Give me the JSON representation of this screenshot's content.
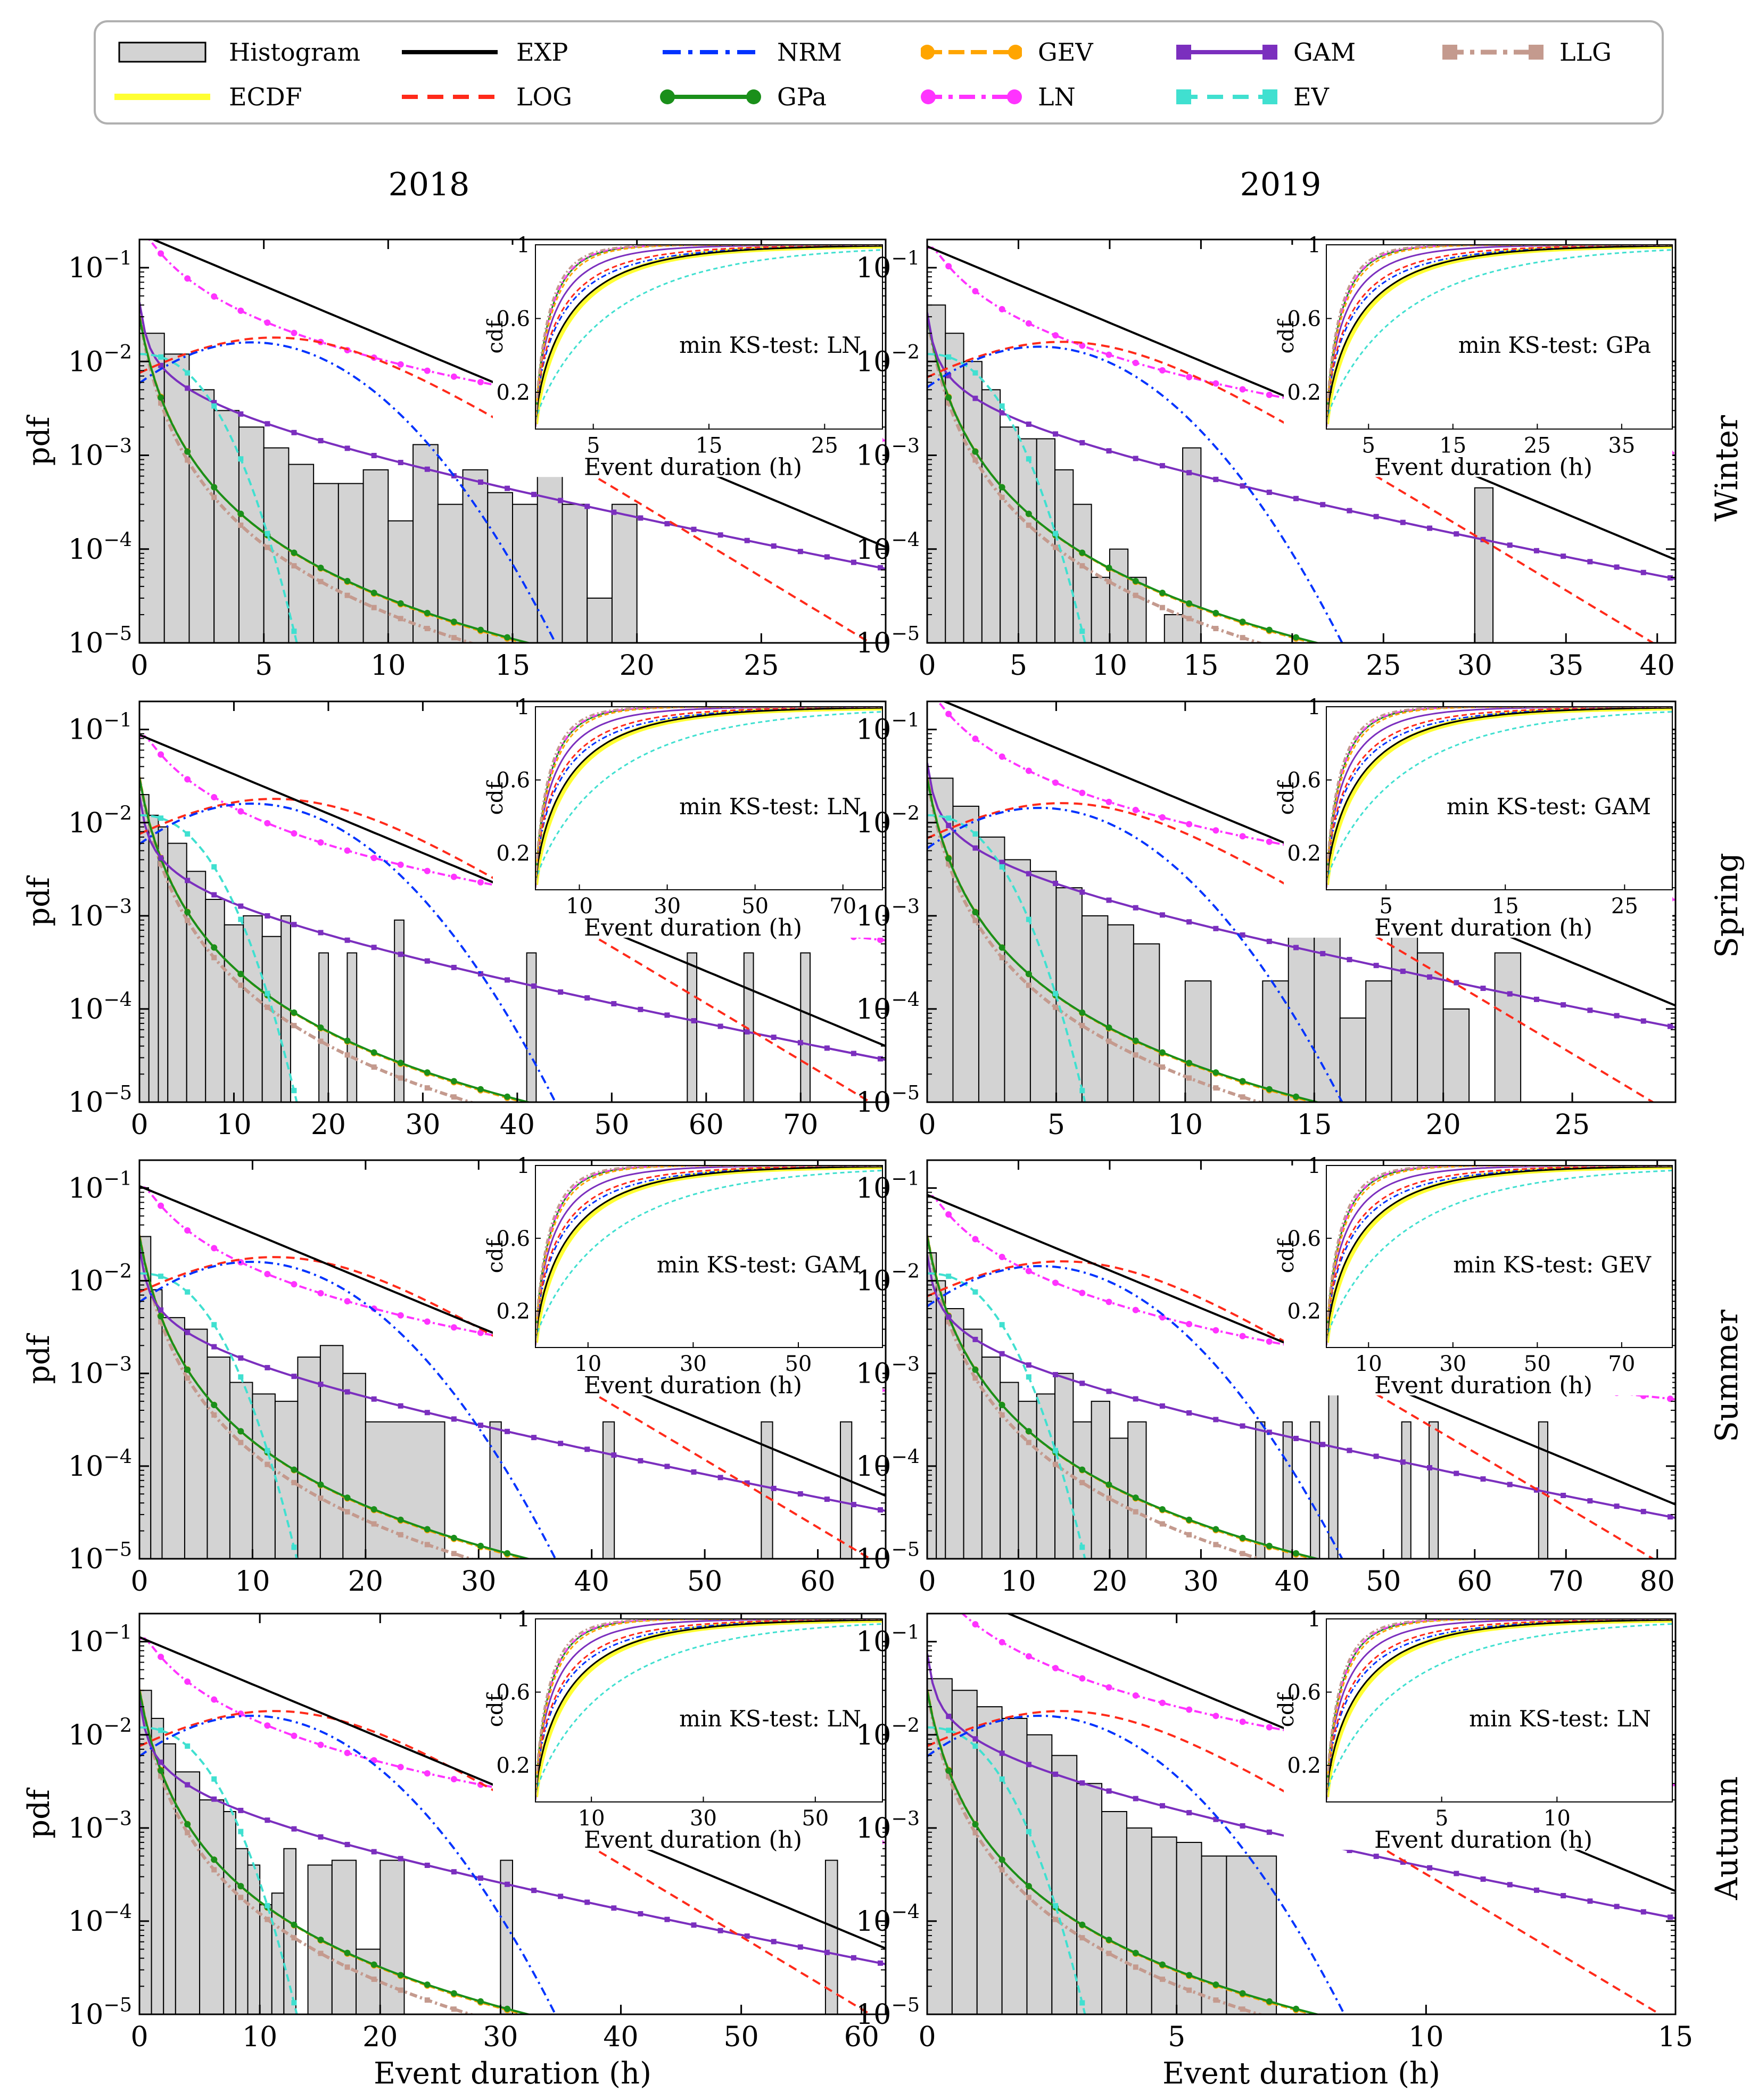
{
  "legend": {
    "items": [
      {
        "key": "hist",
        "label": "Histogram",
        "color": "#d3d3d3",
        "style": "box"
      },
      {
        "key": "EXP",
        "label": "EXP",
        "color": "#000000",
        "style": "solid"
      },
      {
        "key": "NRM",
        "label": "NRM",
        "color": "#0033ff",
        "style": "dashdot"
      },
      {
        "key": "GEV",
        "label": "GEV",
        "color": "#ffa500",
        "style": "dash-dot-marker"
      },
      {
        "key": "GAM",
        "label": "GAM",
        "color": "#7b2fbe",
        "style": "solid-square"
      },
      {
        "key": "LLG",
        "label": "LLG",
        "color": "#c49a8e",
        "style": "dashdot-square"
      },
      {
        "key": "ECDF",
        "label": "ECDF",
        "color": "#ffff33",
        "style": "thick"
      },
      {
        "key": "LOG",
        "label": "LOG",
        "color": "#ff2a1a",
        "style": "dash"
      },
      {
        "key": "GPa",
        "label": "GPa",
        "color": "#1a8f1a",
        "style": "solid-dot"
      },
      {
        "key": "LN",
        "label": "LN",
        "color": "#ff33ff",
        "style": "dashdot-dot"
      },
      {
        "key": "EV",
        "label": "EV",
        "color": "#40e0d0",
        "style": "dash-square"
      }
    ]
  },
  "columns": [
    "2018",
    "2019"
  ],
  "rows": [
    "Winter",
    "Spring",
    "Summer",
    "Autumn"
  ],
  "axis": {
    "xlabel": "Event duration (h)",
    "ylabel": "pdf",
    "inset_ylabel": "cdf",
    "inset_xlabel": "Event duration (h)",
    "y_ticks": [
      "10^-1",
      "10^-2",
      "10^-3",
      "10^-4",
      "10^-5"
    ],
    "inset_y_ticks": [
      "1",
      "0.6",
      "0.2"
    ],
    "ks_prefix": "min KS-test:"
  },
  "chart_data": [
    {
      "type": "line",
      "title": "Winter 2018",
      "xlim": [
        0,
        30
      ],
      "xticks": [
        0,
        5,
        10,
        15,
        20,
        25
      ],
      "ylim": [
        1e-05,
        0.2
      ],
      "ks": "LN",
      "inset": {
        "xmax": 30,
        "xticks": [
          5,
          15,
          25
        ]
      },
      "hist": [
        [
          0,
          1,
          0.02
        ],
        [
          1,
          2,
          0.012
        ],
        [
          2,
          3,
          0.005
        ],
        [
          3,
          4,
          0.003
        ],
        [
          4,
          5,
          0.002
        ],
        [
          5,
          6,
          0.0012
        ],
        [
          6,
          7,
          0.0008
        ],
        [
          7,
          8,
          0.0005
        ],
        [
          8,
          9,
          0.0005
        ],
        [
          9,
          10,
          0.0007
        ],
        [
          10,
          11,
          0.0002
        ],
        [
          11,
          12,
          0.0013
        ],
        [
          12,
          13,
          0.0003
        ],
        [
          13,
          14,
          0.0007
        ],
        [
          14,
          15,
          0.0004
        ],
        [
          15,
          16,
          0.0003
        ],
        [
          16,
          17,
          0.0007
        ],
        [
          17,
          18,
          0.0003
        ],
        [
          18,
          19,
          3e-05
        ],
        [
          19,
          20,
          0.0003
        ]
      ]
    },
    {
      "type": "line",
      "title": "Winter 2019",
      "xlim": [
        0,
        41
      ],
      "xticks": [
        0,
        5,
        10,
        15,
        20,
        25,
        30,
        35,
        40
      ],
      "ylim": [
        1e-05,
        0.2
      ],
      "ks": "GPa",
      "inset": {
        "xmax": 41,
        "xticks": [
          5,
          15,
          25,
          35
        ]
      },
      "hist": [
        [
          0,
          1,
          0.04
        ],
        [
          1,
          2,
          0.02
        ],
        [
          2,
          3,
          0.01
        ],
        [
          3,
          4,
          0.005
        ],
        [
          4,
          5,
          0.002
        ],
        [
          5,
          6,
          0.0015
        ],
        [
          6,
          7,
          0.0015
        ],
        [
          7,
          8,
          0.0007
        ],
        [
          8,
          9,
          0.0003
        ],
        [
          9,
          10,
          5e-05
        ],
        [
          10,
          11,
          0.0001
        ],
        [
          11,
          12,
          5e-05
        ],
        [
          13,
          14,
          2e-05
        ],
        [
          14,
          15,
          0.0012
        ],
        [
          29,
          30,
          1e-05
        ],
        [
          30,
          31,
          0.00045
        ]
      ]
    },
    {
      "type": "line",
      "title": "Spring 2018",
      "xlim": [
        0,
        79
      ],
      "xticks": [
        0,
        10,
        20,
        30,
        40,
        50,
        60,
        70
      ],
      "ylim": [
        1e-05,
        0.2
      ],
      "ks": "LN",
      "inset": {
        "xmax": 79,
        "xticks": [
          10,
          30,
          50,
          70
        ]
      },
      "hist": [
        [
          0,
          1,
          0.02
        ],
        [
          1,
          2,
          0.012
        ],
        [
          2,
          3,
          0.009
        ],
        [
          3,
          5,
          0.006
        ],
        [
          5,
          7,
          0.003
        ],
        [
          7,
          9,
          0.0015
        ],
        [
          9,
          11,
          0.0008
        ],
        [
          11,
          13,
          0.001
        ],
        [
          13,
          15,
          0.0006
        ],
        [
          15,
          16,
          0.001
        ],
        [
          19,
          20,
          0.0004
        ],
        [
          22,
          23,
          0.0004
        ],
        [
          27,
          28,
          0.0009
        ],
        [
          41,
          42,
          0.0004
        ],
        [
          58,
          59,
          0.0004
        ],
        [
          64,
          65,
          0.0004
        ],
        [
          70,
          71,
          0.0004
        ]
      ]
    },
    {
      "type": "line",
      "title": "Spring 2019",
      "xlim": [
        0,
        29
      ],
      "xticks": [
        0,
        5,
        10,
        15,
        20,
        25
      ],
      "ylim": [
        1e-05,
        0.2
      ],
      "ks": "GAM",
      "inset": {
        "xmax": 29,
        "xticks": [
          5,
          15,
          25
        ]
      },
      "hist": [
        [
          0,
          1,
          0.03
        ],
        [
          1,
          2,
          0.015
        ],
        [
          2,
          3,
          0.007
        ],
        [
          3,
          4,
          0.004
        ],
        [
          4,
          5,
          0.003
        ],
        [
          5,
          6,
          0.002
        ],
        [
          6,
          7,
          0.001
        ],
        [
          7,
          8,
          0.0008
        ],
        [
          8,
          9,
          0.0005
        ],
        [
          10,
          11,
          0.0002
        ],
        [
          13,
          14,
          0.0002
        ],
        [
          14,
          15,
          0.0006
        ],
        [
          15,
          16,
          0.0006
        ],
        [
          16,
          17,
          8e-05
        ],
        [
          17,
          18,
          0.0002
        ],
        [
          18,
          19,
          0.0008
        ],
        [
          19,
          20,
          0.0004
        ],
        [
          20,
          21,
          0.0001
        ],
        [
          22,
          23,
          0.0004
        ]
      ]
    },
    {
      "type": "line",
      "title": "Summer 2018",
      "xlim": [
        0,
        66
      ],
      "xticks": [
        0,
        10,
        20,
        30,
        40,
        50,
        60
      ],
      "ylim": [
        1e-05,
        0.2
      ],
      "ks": "GAM",
      "inset": {
        "xmax": 66,
        "xticks": [
          10,
          30,
          50
        ]
      },
      "hist": [
        [
          0,
          1,
          0.03
        ],
        [
          1,
          2,
          0.008
        ],
        [
          2,
          4,
          0.004
        ],
        [
          4,
          6,
          0.003
        ],
        [
          6,
          8,
          0.0015
        ],
        [
          8,
          10,
          0.0008
        ],
        [
          10,
          12,
          0.0006
        ],
        [
          12,
          14,
          0.0005
        ],
        [
          14,
          16,
          0.0015
        ],
        [
          16,
          18,
          0.002
        ],
        [
          18,
          20,
          0.001
        ],
        [
          20,
          27,
          0.0003
        ],
        [
          31,
          32,
          0.0003
        ],
        [
          41,
          42,
          0.0003
        ],
        [
          55,
          56,
          0.0003
        ],
        [
          62,
          63,
          0.0003
        ]
      ]
    },
    {
      "type": "line",
      "title": "Summer 2019",
      "xlim": [
        0,
        82
      ],
      "xticks": [
        0,
        10,
        20,
        30,
        40,
        50,
        60,
        70,
        80
      ],
      "ylim": [
        1e-05,
        0.2
      ],
      "ks": "GEV",
      "inset": {
        "xmax": 82,
        "xticks": [
          10,
          30,
          50,
          70
        ]
      },
      "hist": [
        [
          0,
          1,
          0.02
        ],
        [
          1,
          2,
          0.01
        ],
        [
          2,
          4,
          0.005
        ],
        [
          4,
          6,
          0.003
        ],
        [
          6,
          8,
          0.0015
        ],
        [
          8,
          10,
          0.0008
        ],
        [
          10,
          12,
          0.0005
        ],
        [
          12,
          14,
          0.0006
        ],
        [
          14,
          16,
          0.001
        ],
        [
          16,
          18,
          0.0003
        ],
        [
          18,
          20,
          0.0005
        ],
        [
          20,
          22,
          0.0002
        ],
        [
          22,
          24,
          0.0003
        ],
        [
          36,
          37,
          0.0003
        ],
        [
          39,
          40,
          0.0003
        ],
        [
          42,
          43,
          0.0003
        ],
        [
          44,
          45,
          0.0008
        ],
        [
          52,
          53,
          0.0003
        ],
        [
          55,
          56,
          0.0003
        ],
        [
          67,
          68,
          0.0003
        ]
      ]
    },
    {
      "type": "line",
      "title": "Autumn 2018",
      "xlim": [
        0,
        62
      ],
      "xticks": [
        0,
        10,
        20,
        30,
        40,
        50,
        60
      ],
      "ylim": [
        1e-05,
        0.2
      ],
      "ks": "LN",
      "inset": {
        "xmax": 62,
        "xticks": [
          10,
          30,
          50
        ]
      },
      "hist": [
        [
          0,
          1,
          0.03
        ],
        [
          1,
          2,
          0.015
        ],
        [
          2,
          3,
          0.008
        ],
        [
          3,
          5,
          0.004
        ],
        [
          5,
          7,
          0.002
        ],
        [
          7,
          8,
          0.0015
        ],
        [
          8,
          9,
          0.0006
        ],
        [
          9,
          10,
          0.0004
        ],
        [
          10,
          11,
          0.00015
        ],
        [
          11,
          12,
          0.0002
        ],
        [
          12,
          13,
          0.0006
        ],
        [
          14,
          16,
          0.0004
        ],
        [
          16,
          18,
          0.00045
        ],
        [
          18,
          20,
          5e-05
        ],
        [
          20,
          22,
          0.00045
        ],
        [
          30,
          31,
          0.00045
        ],
        [
          57,
          58,
          0.00045
        ]
      ]
    },
    {
      "type": "line",
      "title": "Autumn 2019",
      "xlim": [
        0,
        15
      ],
      "xticks": [
        0,
        5,
        10,
        15
      ],
      "ylim": [
        1e-05,
        0.2
      ],
      "ks": "LN",
      "inset": {
        "xmax": 15,
        "xticks": [
          5,
          10
        ]
      },
      "hist": [
        [
          0,
          0.5,
          0.04
        ],
        [
          0.5,
          1,
          0.03
        ],
        [
          1,
          1.5,
          0.02
        ],
        [
          1.5,
          2,
          0.015
        ],
        [
          2,
          2.5,
          0.01
        ],
        [
          2.5,
          3,
          0.006
        ],
        [
          3,
          3.5,
          0.003
        ],
        [
          3.5,
          4,
          0.0015
        ],
        [
          4,
          4.5,
          0.001
        ],
        [
          4.5,
          5,
          0.0008
        ],
        [
          5,
          5.5,
          0.0007
        ],
        [
          5.5,
          6,
          0.0005
        ],
        [
          6,
          7,
          0.0005
        ]
      ]
    }
  ]
}
